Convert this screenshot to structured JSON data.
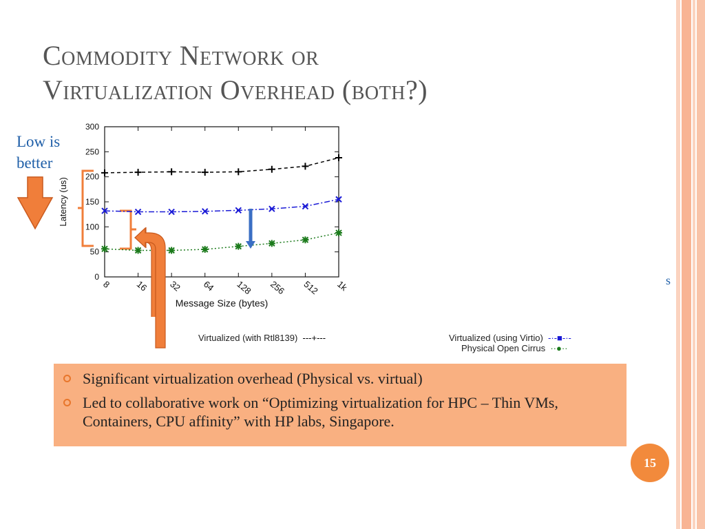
{
  "slide": {
    "title_lines": [
      "Commodity Network or",
      "Virtualization Overhead (both?)"
    ],
    "note_lines": [
      "Low is",
      "better"
    ],
    "stray_glyph": "s",
    "page_number": "15",
    "bullets": [
      "Significant virtualization overhead (Physical vs. virtual)",
      "Led to collaborative work on “Optimizing virtualization for HPC – Thin VMs, Containers, CPU affinity” with HP labs, Singapore."
    ],
    "colors": {
      "title": "#555555",
      "note": "#1f5fa8",
      "bullet_box": "#f9b081",
      "arrow": "#f07e3a",
      "page_badge": "#f28a3c"
    }
  },
  "chart_data": {
    "type": "line",
    "xlabel": "Message Size (bytes)",
    "ylabel": "Latency (us)",
    "categories": [
      "8",
      "16",
      "32",
      "64",
      "128",
      "256",
      "512",
      "1k"
    ],
    "ylim": [
      0,
      300
    ],
    "yticks": [
      0,
      50,
      100,
      150,
      200,
      250,
      300
    ],
    "series": [
      {
        "name": "Virtualized (with Rtl8139)",
        "color": "#000000",
        "marker": "+",
        "dash": "5,4",
        "values": [
          208,
          209,
          210,
          209,
          210,
          215,
          221,
          238
        ]
      },
      {
        "name": "Virtualized (using Virtio)",
        "color": "#1a1ad6",
        "marker": "x",
        "dash": "8,3,2,3",
        "values": [
          132,
          130,
          130,
          131,
          133,
          136,
          141,
          155
        ]
      },
      {
        "name": "Physical Open Cirrus",
        "color": "#1b7a1b",
        "marker": "*",
        "dash": "2,3",
        "values": [
          56,
          53,
          53,
          55,
          61,
          67,
          74,
          88
        ]
      }
    ],
    "legend_labels": [
      "Virtualized (with Rtl8139)",
      "Virtualized (using Virtio)",
      "Physical Open Cirrus"
    ],
    "grid": false
  }
}
